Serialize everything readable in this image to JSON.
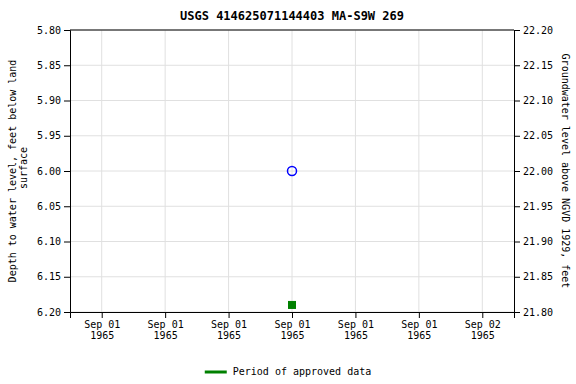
{
  "chart_data": {
    "type": "scatter",
    "title": "USGS 414625071144403 MA-S9W  269",
    "y_label": "Depth to water level, feet below land\n surface",
    "y2_label": "Groundwater level above NGVD 1929, feet",
    "categories": [
      "Sep 01\n1965",
      "Sep 01\n1965",
      "Sep 01\n1965",
      "Sep 01\n1965",
      "Sep 01\n1965",
      "Sep 01\n1965",
      "Sep 02\n1965"
    ],
    "series": [
      {
        "color": "blue",
        "marker": "circle",
        "values": [
          null,
          null,
          null,
          6.0,
          null,
          null,
          null
        ]
      },
      {
        "name": "Period of approved data",
        "color": "#008000",
        "marker": "square",
        "values": [
          null,
          null,
          null,
          6.19,
          null,
          null,
          null
        ]
      }
    ],
    "ylim": [
      6.2,
      5.8
    ],
    "yticks": [
      {
        "value": 5.8,
        "label": "5.80"
      },
      {
        "value": 5.85,
        "label": "5.85"
      },
      {
        "value": 5.9,
        "label": "5.90"
      },
      {
        "value": 5.95,
        "label": "5.95"
      },
      {
        "value": 6.0,
        "label": "6.00"
      },
      {
        "value": 6.05,
        "label": "6.05"
      },
      {
        "value": 6.1,
        "label": "6.10"
      },
      {
        "value": 6.15,
        "label": "6.15"
      },
      {
        "value": 6.2,
        "label": "6.20"
      }
    ],
    "y2lim": [
      21.8,
      22.2
    ],
    "y2ticks": [
      {
        "value": 22.2,
        "label": "22.20"
      },
      {
        "value": 22.15,
        "label": "22.15"
      },
      {
        "value": 22.1,
        "label": "22.10"
      },
      {
        "value": 22.05,
        "label": "22.05"
      },
      {
        "value": 22.0,
        "label": "22.00"
      },
      {
        "value": 21.95,
        "label": "21.95"
      },
      {
        "value": 21.9,
        "label": "21.90"
      },
      {
        "value": 21.85,
        "label": "21.85"
      },
      {
        "value": 21.8,
        "label": "21.80"
      }
    ],
    "grid": true,
    "legend": "bottom"
  }
}
